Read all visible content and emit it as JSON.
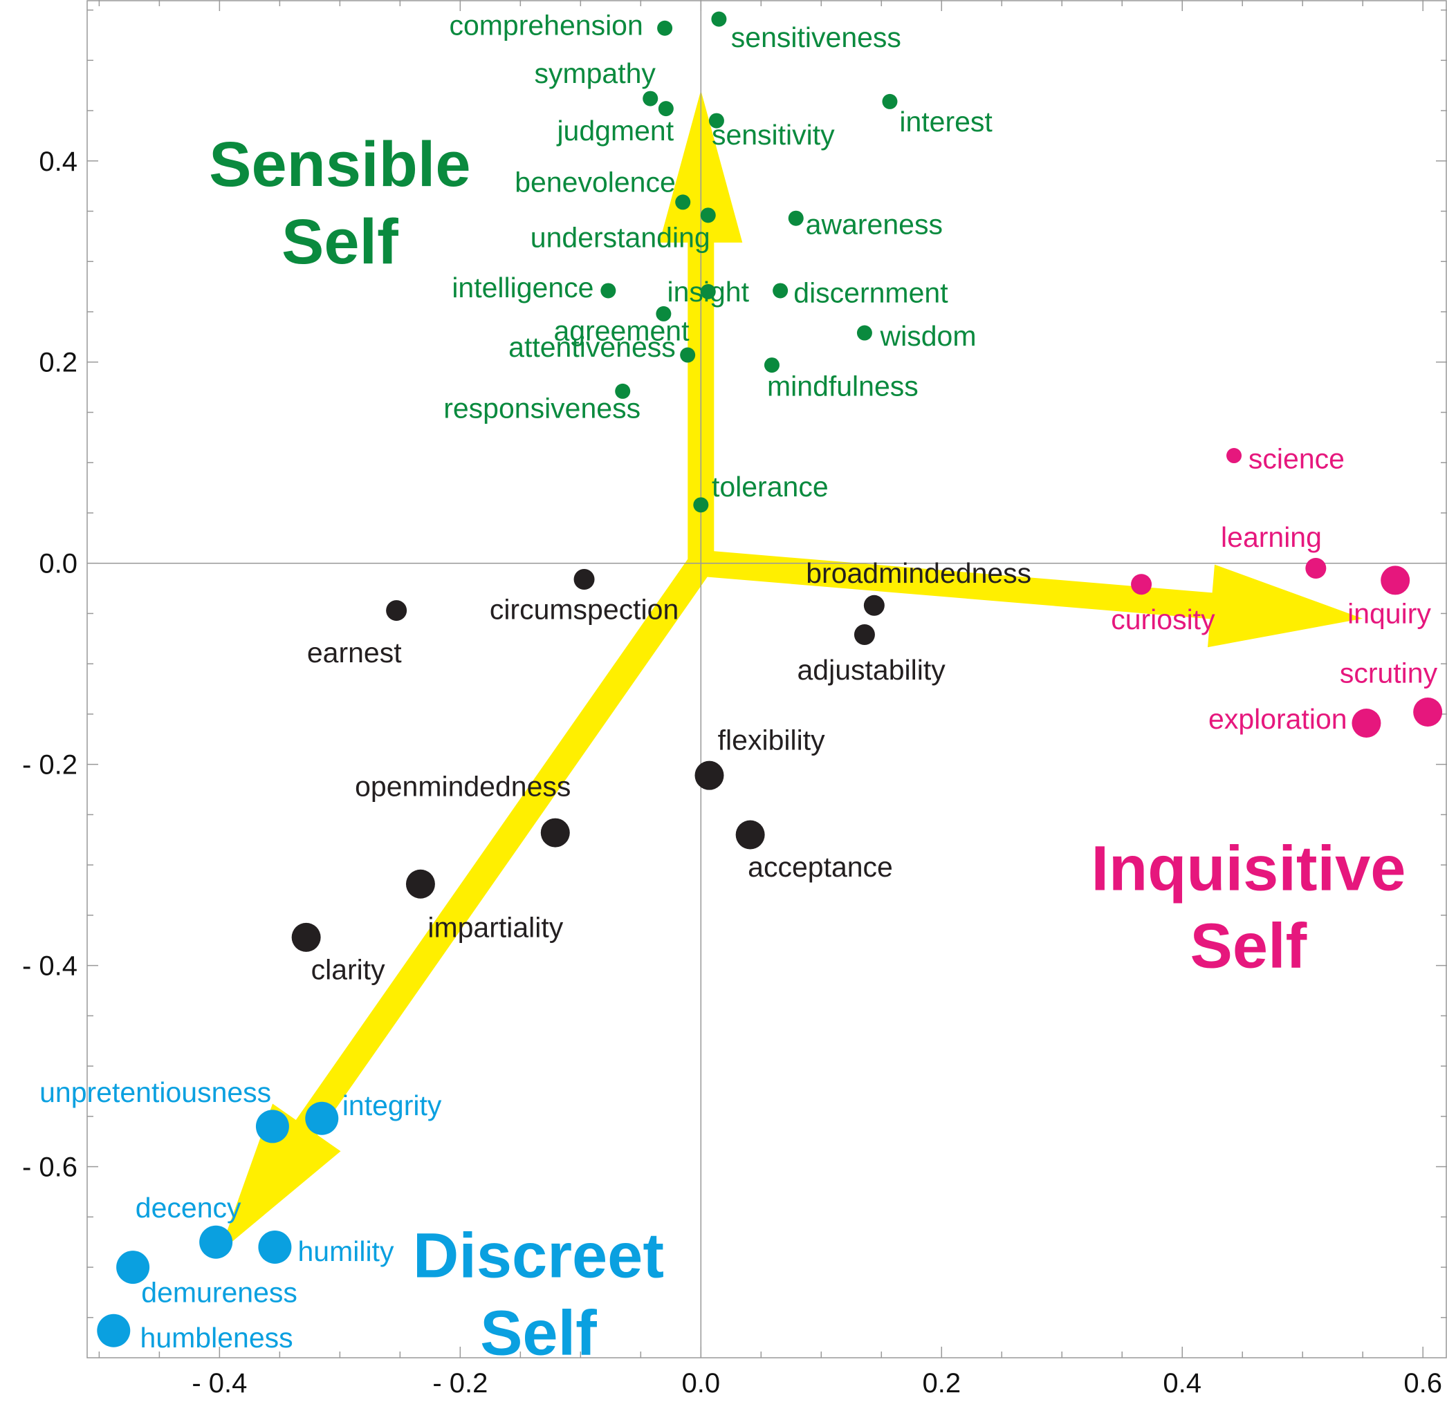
{
  "chart_data": {
    "type": "scatter",
    "xlim": [
      -0.51,
      0.62
    ],
    "ylim": [
      -0.79,
      0.56
    ],
    "x_ticks": [
      {
        "value": -0.4,
        "label": "- 0.4"
      },
      {
        "value": -0.2,
        "label": "- 0.2"
      },
      {
        "value": 0.0,
        "label": "0.0"
      },
      {
        "value": 0.2,
        "label": "0.2"
      },
      {
        "value": 0.4,
        "label": "0.4"
      },
      {
        "value": 0.6,
        "label": "0.6"
      }
    ],
    "y_ticks": [
      {
        "value": 0.4,
        "label": "0.4"
      },
      {
        "value": 0.2,
        "label": "0.2"
      },
      {
        "value": 0.0,
        "label": "0.0"
      },
      {
        "value": -0.2,
        "label": "- 0.2"
      },
      {
        "value": -0.4,
        "label": "- 0.4"
      },
      {
        "value": -0.6,
        "label": "- 0.6"
      }
    ],
    "grid": false,
    "reference_lines": {
      "x": 0,
      "y": 0
    },
    "colors": {
      "sensible": "#0a8a3e",
      "inquisitive": "#e6177d",
      "discreet": "#0aa0e0",
      "neutral": "#231f20",
      "arrow": "#ffef00"
    },
    "arrows": [
      {
        "from": [
          0.0,
          0.0
        ],
        "to": [
          0.0,
          0.47
        ]
      },
      {
        "from": [
          0.0,
          0.0
        ],
        "to": [
          0.55,
          -0.055
        ]
      },
      {
        "from": [
          0.0,
          0.0
        ],
        "to": [
          -0.4,
          -0.685
        ]
      }
    ],
    "group_labels": [
      {
        "group": "sensible",
        "lines": [
          "Sensible",
          "Self"
        ],
        "x": -0.3,
        "y": 0.375
      },
      {
        "group": "inquisitive",
        "lines": [
          "Inquisitive",
          "Self"
        ],
        "x": 0.455,
        "y": -0.325
      },
      {
        "group": "discreet",
        "lines": [
          "Discreet",
          "Self"
        ],
        "x": -0.135,
        "y": -0.71
      }
    ],
    "series": [
      {
        "group": "sensible",
        "points": [
          {
            "label": "comprehension",
            "x": -0.03,
            "y": 0.532,
            "size": 1,
            "anchor": "end",
            "dx": -0.018,
            "dy": 0.003
          },
          {
            "label": "sensitiveness",
            "x": 0.015,
            "y": 0.541,
            "size": 1,
            "anchor": "start",
            "dx": 0.01,
            "dy": -0.018
          },
          {
            "label": "sympathy",
            "x": -0.042,
            "y": 0.462,
            "size": 1,
            "anchor": "middle",
            "dx": -0.046,
            "dy": 0.025
          },
          {
            "label": "judgment",
            "x": -0.029,
            "y": 0.452,
            "size": 1,
            "anchor": "middle",
            "dx": -0.042,
            "dy": -0.022
          },
          {
            "label": "sensitivity",
            "x": 0.013,
            "y": 0.44,
            "size": 1,
            "anchor": "start",
            "dx": -0.004,
            "dy": -0.014
          },
          {
            "label": "interest",
            "x": 0.157,
            "y": 0.459,
            "size": 1,
            "anchor": "start",
            "dx": 0.008,
            "dy": -0.02
          },
          {
            "label": "benevolence",
            "x": -0.015,
            "y": 0.359,
            "size": 1,
            "anchor": "end",
            "dx": -0.006,
            "dy": 0.02
          },
          {
            "label": "understanding",
            "x": 0.006,
            "y": 0.346,
            "size": 1,
            "anchor": "middle",
            "dx": -0.073,
            "dy": -0.022
          },
          {
            "label": "awareness",
            "x": 0.079,
            "y": 0.343,
            "size": 1,
            "anchor": "start",
            "dx": 0.008,
            "dy": -0.006
          },
          {
            "label": "intelligence",
            "x": -0.077,
            "y": 0.271,
            "size": 1,
            "anchor": "end",
            "dx": -0.012,
            "dy": 0.003
          },
          {
            "label": "insight",
            "x": 0.006,
            "y": 0.27,
            "size": 1,
            "anchor": "middle",
            "dx": 0.0,
            "dy": 0.0
          },
          {
            "label": "discernment",
            "x": 0.066,
            "y": 0.271,
            "size": 1,
            "anchor": "start",
            "dx": 0.011,
            "dy": -0.002
          },
          {
            "label": "agreement",
            "x": -0.031,
            "y": 0.248,
            "size": 1,
            "anchor": "middle",
            "dx": -0.035,
            "dy": -0.017
          },
          {
            "label": "wisdom",
            "x": 0.136,
            "y": 0.229,
            "size": 1,
            "anchor": "start",
            "dx": 0.013,
            "dy": -0.003
          },
          {
            "label": "attentiveness",
            "x": -0.011,
            "y": 0.207,
            "size": 1,
            "anchor": "end",
            "dx": -0.01,
            "dy": 0.008
          },
          {
            "label": "mindfulness",
            "x": 0.059,
            "y": 0.197,
            "size": 1,
            "anchor": "start",
            "dx": -0.004,
            "dy": -0.021
          },
          {
            "label": "responsiveness",
            "x": -0.065,
            "y": 0.171,
            "size": 1,
            "anchor": "middle",
            "dx": -0.067,
            "dy": -0.017
          },
          {
            "label": "tolerance",
            "x": 0.0,
            "y": 0.058,
            "size": 1,
            "anchor": "start",
            "dx": 0.009,
            "dy": 0.018
          }
        ]
      },
      {
        "group": "neutral",
        "points": [
          {
            "label": "circumspection",
            "x": -0.097,
            "y": -0.016,
            "size": 2,
            "anchor": "middle",
            "dx": 0.0,
            "dy": -0.03
          },
          {
            "label": "earnest",
            "x": -0.253,
            "y": -0.047,
            "size": 2,
            "anchor": "middle",
            "dx": -0.035,
            "dy": -0.042
          },
          {
            "label": "broadmindedness",
            "x": 0.144,
            "y": -0.042,
            "size": 2,
            "anchor": "middle",
            "dx": 0.037,
            "dy": 0.032
          },
          {
            "label": "adjustability",
            "x": 0.136,
            "y": -0.071,
            "size": 2,
            "anchor": "start",
            "dx": -0.056,
            "dy": -0.035
          },
          {
            "label": "flexibility",
            "x": 0.007,
            "y": -0.211,
            "size": 3,
            "anchor": "start",
            "dx": 0.007,
            "dy": 0.035
          },
          {
            "label": "openmindedness",
            "x": -0.121,
            "y": -0.268,
            "size": 3,
            "anchor": "end",
            "dx": 0.013,
            "dy": 0.046
          },
          {
            "label": "acceptance",
            "x": 0.041,
            "y": -0.27,
            "size": 3,
            "anchor": "start",
            "dx": -0.002,
            "dy": -0.032
          },
          {
            "label": "impartiality",
            "x": -0.233,
            "y": -0.319,
            "size": 3,
            "anchor": "start",
            "dx": 0.006,
            "dy": -0.043
          },
          {
            "label": "clarity",
            "x": -0.328,
            "y": -0.372,
            "size": 3,
            "anchor": "start",
            "dx": 0.004,
            "dy": -0.032
          }
        ]
      },
      {
        "group": "inquisitive",
        "points": [
          {
            "label": "science",
            "x": 0.443,
            "y": 0.107,
            "size": 1,
            "anchor": "start",
            "dx": 0.012,
            "dy": -0.003
          },
          {
            "label": "learning",
            "x": 0.511,
            "y": -0.005,
            "size": 2,
            "anchor": "middle",
            "dx": -0.037,
            "dy": 0.031
          },
          {
            "label": "curiosity",
            "x": 0.366,
            "y": -0.021,
            "size": 2,
            "anchor": "middle",
            "dx": 0.018,
            "dy": -0.035
          },
          {
            "label": "inquiry",
            "x": 0.577,
            "y": -0.017,
            "size": 3,
            "anchor": "middle",
            "dx": -0.005,
            "dy": -0.033
          },
          {
            "label": "scrutiny",
            "x": 0.604,
            "y": -0.148,
            "size": 3,
            "anchor": "end",
            "dx": 0.008,
            "dy": 0.039
          },
          {
            "label": "exploration",
            "x": 0.553,
            "y": -0.159,
            "size": 3,
            "anchor": "end",
            "dx": -0.016,
            "dy": 0.004
          }
        ]
      },
      {
        "group": "discreet",
        "points": [
          {
            "label": "unpretentiousness",
            "x": -0.356,
            "y": -0.56,
            "size": 4,
            "anchor": "end",
            "dx": -0.001,
            "dy": 0.034
          },
          {
            "label": "integrity",
            "x": -0.315,
            "y": -0.552,
            "size": 4,
            "anchor": "start",
            "dx": 0.017,
            "dy": 0.013
          },
          {
            "label": "decency",
            "x": -0.403,
            "y": -0.675,
            "size": 4,
            "anchor": "middle",
            "dx": -0.023,
            "dy": 0.034
          },
          {
            "label": "humility",
            "x": -0.354,
            "y": -0.68,
            "size": 4,
            "anchor": "start",
            "dx": 0.019,
            "dy": -0.004
          },
          {
            "label": "demureness",
            "x": -0.472,
            "y": -0.7,
            "size": 4,
            "anchor": "start",
            "dx": 0.007,
            "dy": -0.025
          },
          {
            "label": "humbleness",
            "x": -0.488,
            "y": -0.763,
            "size": 4,
            "anchor": "start",
            "dx": 0.022,
            "dy": -0.007
          }
        ]
      }
    ]
  }
}
